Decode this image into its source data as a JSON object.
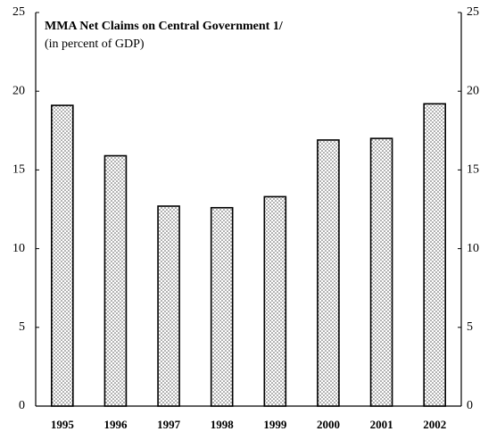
{
  "chart_data": {
    "type": "bar",
    "title": "MMA Net Claims on Central Government 1/",
    "subtitle": "(in percent of GDP)",
    "categories": [
      "1995",
      "1996",
      "1997",
      "1998",
      "1999",
      "2000",
      "2001",
      "2002"
    ],
    "values": [
      19.1,
      15.9,
      12.7,
      12.6,
      13.3,
      16.9,
      17.0,
      19.2
    ],
    "color": "#555555",
    "ylim": [
      0,
      25
    ],
    "yticks": [
      0,
      5,
      10,
      15,
      20,
      25
    ],
    "y2lim": [
      0,
      25
    ],
    "y2ticks": [
      0,
      5,
      10,
      15,
      20,
      25
    ]
  }
}
